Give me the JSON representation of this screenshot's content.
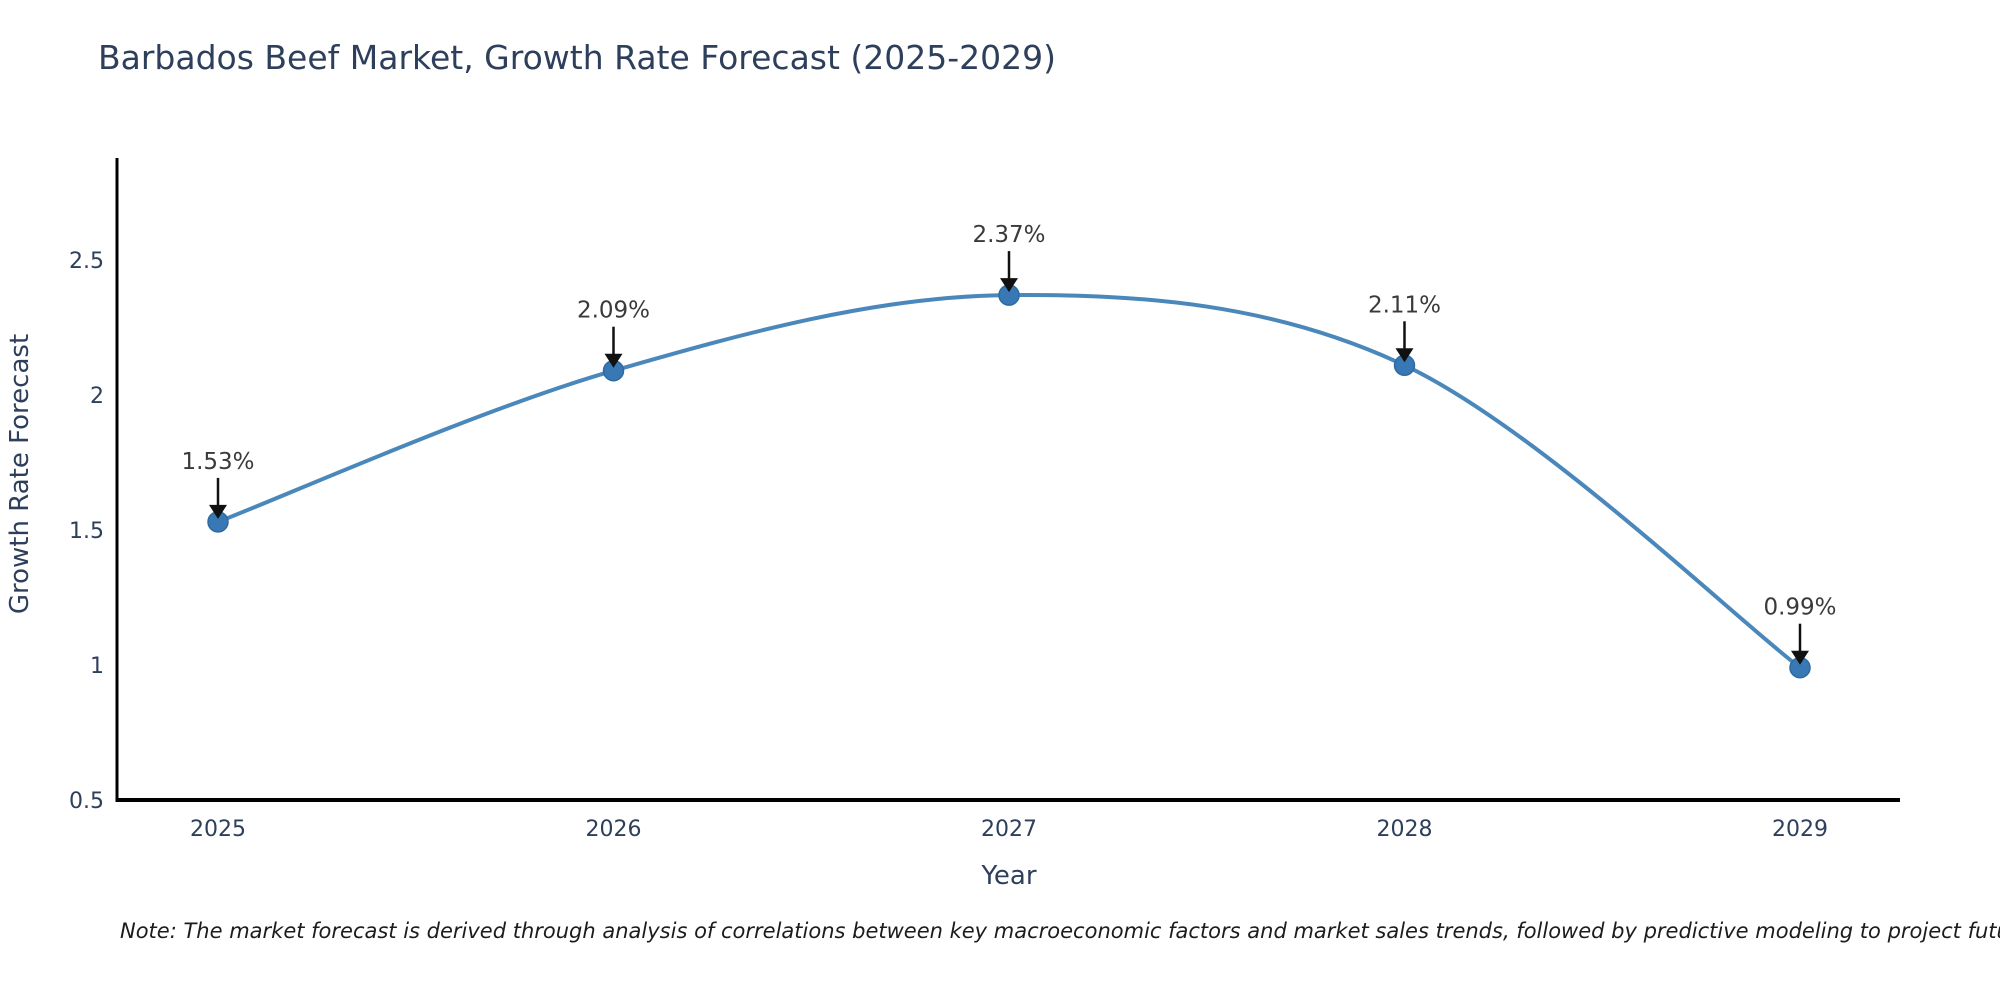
{
  "title": "Barbados Beef Market, Growth Rate Forecast (2025-2029)",
  "note": "Note: The market forecast is derived through analysis of correlations between key macroeconomic factors and market sales trends, followed by predictive modeling to project future sales",
  "chart_data": {
    "type": "line",
    "title": "Barbados Beef Market, Growth Rate Forecast (2025-2029)",
    "x": [
      2025,
      2026,
      2027,
      2028,
      2029
    ],
    "x_tick_labels": [
      "2025",
      "2026",
      "2027",
      "2028",
      "2029"
    ],
    "values": [
      1.53,
      2.09,
      2.37,
      2.11,
      0.99
    ],
    "point_labels": [
      "1.53%",
      "2.09%",
      "2.37%",
      "2.11%",
      "0.99%"
    ],
    "xlabel": "Year",
    "ylabel": "Growth Rate Forecast",
    "y_ticks": [
      0.5,
      1,
      1.5,
      2,
      2.5
    ],
    "y_tick_labels": [
      "0.5",
      "1",
      "1.5",
      "2",
      "2.5"
    ],
    "ylim": [
      0.5,
      2.87
    ],
    "line_shape": "spline",
    "grid": false,
    "legend_position": "none",
    "annotation_style": "value labels with downward arrows above each point",
    "colors": {
      "line": "#4a87ba",
      "marker_fill": "#3878b4",
      "marker_border": "#2e6ba1",
      "axis_line": "#000000",
      "axis_text": "#2e3f5c",
      "annotation_text": "#3a3a3a",
      "arrow": "#111111",
      "note_text": "#1c1c1c",
      "background": "#ffffff"
    }
  }
}
